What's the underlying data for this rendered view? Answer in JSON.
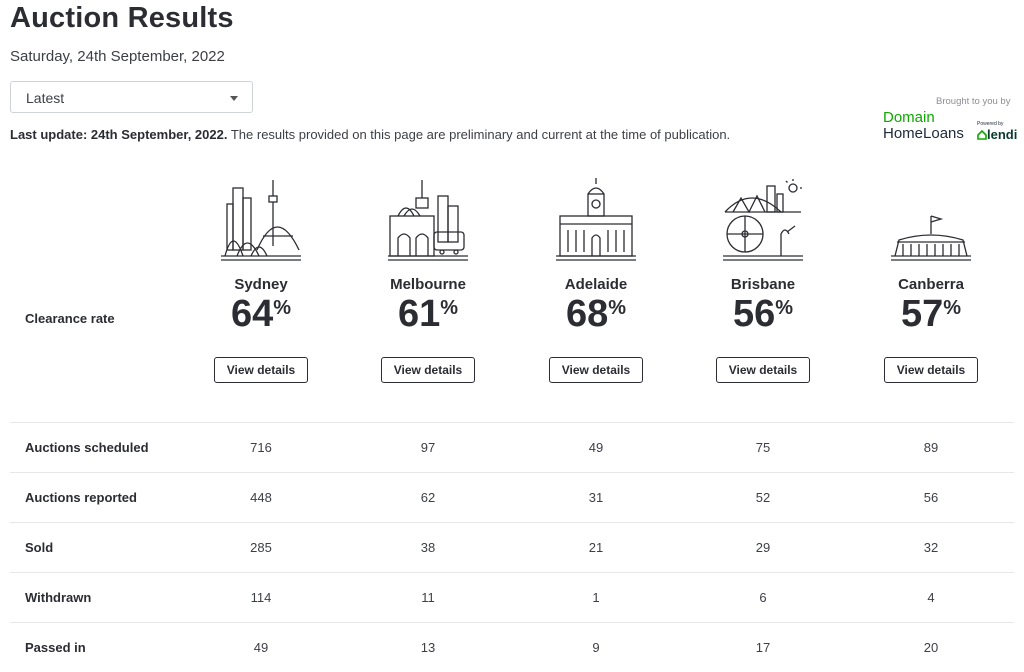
{
  "header": {
    "title": "Auction Results",
    "date": "Saturday, 24th September, 2022"
  },
  "filter": {
    "selected": "Latest"
  },
  "update": {
    "bold": "Last update: 24th September, 2022.",
    "text": " The results provided on this page are preliminary and current at the time of publication."
  },
  "sponsor": {
    "caption": "Brought to you by",
    "domain": "Domain",
    "homeloans": "HomeLoans",
    "powered": "Powered by",
    "lendi": "lendi"
  },
  "clearance_label": "Clearance rate",
  "cities": [
    {
      "name": "Sydney",
      "rate": "64",
      "pct": "%",
      "button": "View details",
      "icon": "sydney-skyline-icon"
    },
    {
      "name": "Melbourne",
      "rate": "61",
      "pct": "%",
      "button": "View details",
      "icon": "melbourne-skyline-icon"
    },
    {
      "name": "Adelaide",
      "rate": "68",
      "pct": "%",
      "button": "View details",
      "icon": "adelaide-skyline-icon"
    },
    {
      "name": "Brisbane",
      "rate": "56",
      "pct": "%",
      "button": "View details",
      "icon": "brisbane-skyline-icon"
    },
    {
      "name": "Canberra",
      "rate": "57",
      "pct": "%",
      "button": "View details",
      "icon": "canberra-skyline-icon"
    }
  ],
  "table": {
    "rows": [
      {
        "label": "Auctions scheduled",
        "values": [
          "716",
          "97",
          "49",
          "75",
          "89"
        ]
      },
      {
        "label": "Auctions reported",
        "values": [
          "448",
          "62",
          "31",
          "52",
          "56"
        ]
      },
      {
        "label": "Sold",
        "values": [
          "285",
          "38",
          "21",
          "29",
          "32"
        ]
      },
      {
        "label": "Withdrawn",
        "values": [
          "114",
          "11",
          "1",
          "6",
          "4"
        ]
      },
      {
        "label": "Passed in",
        "values": [
          "49",
          "13",
          "9",
          "17",
          "20"
        ]
      }
    ]
  }
}
